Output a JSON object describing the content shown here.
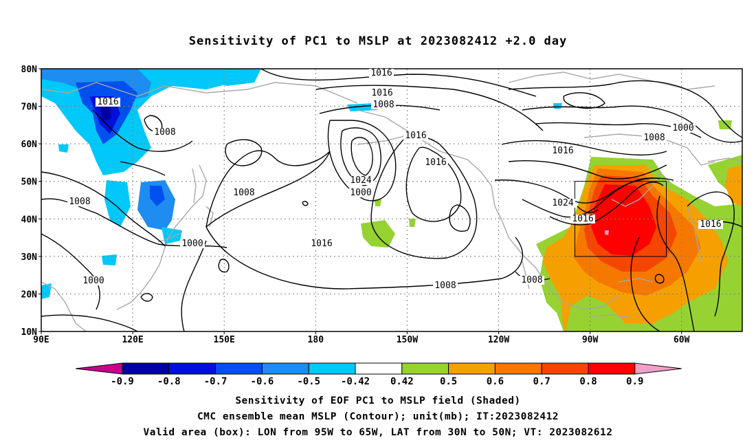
{
  "title": "Sensitivity of PC1 to MSLP at 2023082412 +2.0 day",
  "map": {
    "lat_ticks": [
      "80N",
      "70N",
      "60N",
      "50N",
      "40N",
      "30N",
      "20N",
      "10N"
    ],
    "lon_ticks": [
      "90E",
      "120E",
      "150E",
      "180",
      "150W",
      "120W",
      "90W",
      "60W"
    ],
    "lon_range": [
      "90E",
      "40W"
    ],
    "lat_range": [
      "10N",
      "80N"
    ],
    "grid": "dotted",
    "valid_box": {
      "lon_from": "95W",
      "lon_to": "65W",
      "lat_from": "30N",
      "lat_to": "50N"
    },
    "contour_labels": [
      "1016",
      "1016",
      "1008",
      "1008",
      "1016",
      "1016",
      "1024",
      "1000",
      "1008",
      "1016",
      "1008",
      "1016",
      "1008",
      "1000",
      "1000",
      "1008",
      "1016",
      "1024",
      "1016",
      "1016",
      "1008"
    ]
  },
  "colorbar": {
    "ticks": [
      "-0.9",
      "-0.8",
      "-0.7",
      "-0.6",
      "-0.5",
      "-0.42",
      "0.42",
      "0.5",
      "0.6",
      "0.7",
      "0.8",
      "0.9"
    ],
    "colors": {
      "lt_-0.9": "#c8008c",
      "-0.9_-0.8": "#0000a0",
      "-0.8_-0.7": "#0010d8",
      "-0.7_-0.6": "#0050f0",
      "-0.6_-0.5": "#1e8cf0",
      "-0.5_-0.42": "#00c8f8",
      "-0.42_0.42": "#ffffff",
      "0.42_0.5": "#96d232",
      "0.5_0.6": "#f5a000",
      "0.6_0.7": "#f57800",
      "0.7_0.8": "#f54600",
      "0.8_0.9": "#ff0000",
      "gt_0.9": "#f0a0c8"
    }
  },
  "footer": {
    "line1": "Sensitivity of EOF PC1 to MSLP field (Shaded)",
    "line2": "CMC ensemble mean MSLP (Contour); unit(mb); IT:2023082412",
    "line3": "Valid area (box): LON from 95W to 65W, LAT from 30N to 50N; VT: 2023082612"
  }
}
